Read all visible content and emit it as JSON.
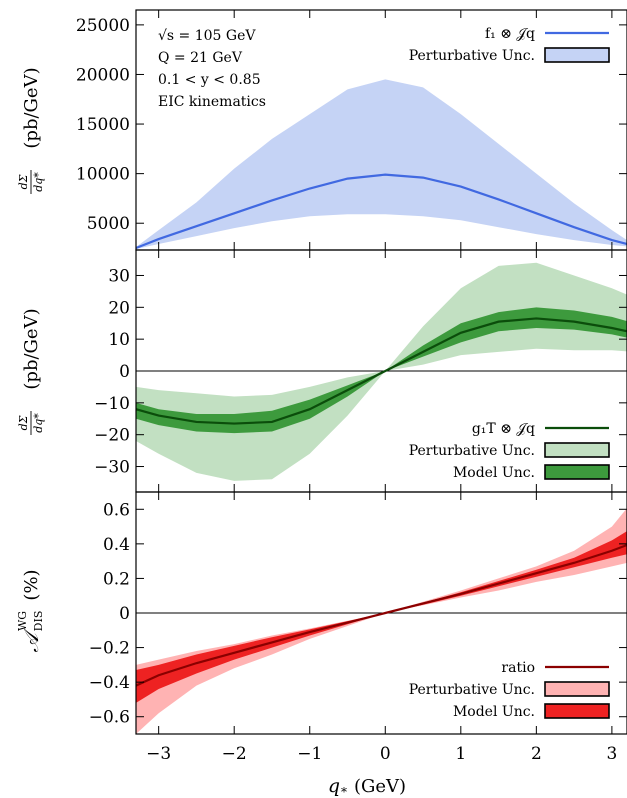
{
  "chart_data": [
    {
      "type": "area",
      "panel": "top",
      "ylabel_frac_num": "dΣ",
      "ylabel_frac_den": "dq*",
      "ylabel_unit": "(pb/GeV)",
      "ylim": [
        2300,
        26500
      ],
      "yticks": [
        5000,
        10000,
        15000,
        20000,
        25000
      ],
      "annotations": [
        "√s = 105 GeV",
        "Q = 21 GeV",
        "0.1 < y < 0.85",
        "EIC kinematics"
      ],
      "x": [
        -3.3,
        -3.0,
        -2.5,
        -2.0,
        -1.5,
        -1.0,
        -0.5,
        0.0,
        0.5,
        1.0,
        1.5,
        2.0,
        2.5,
        3.0,
        3.3
      ],
      "series": [
        {
          "name": "f₁ ⊗ 𝒥q",
          "role": "central",
          "color": "#4169e1",
          "values": [
            2500,
            3400,
            4700,
            6000,
            7300,
            8500,
            9500,
            9900,
            9600,
            8700,
            7400,
            6000,
            4600,
            3300,
            2700
          ]
        },
        {
          "name": "Perturbative Unc.",
          "role": "band",
          "color": "#c5d3f5",
          "edge": "#000000",
          "upper": [
            2600,
            4300,
            7100,
            10500,
            13500,
            16000,
            18500,
            19500,
            18700,
            16000,
            13000,
            10000,
            7000,
            4300,
            2800
          ],
          "lower": [
            2400,
            2900,
            3700,
            4500,
            5200,
            5700,
            5900,
            5900,
            5700,
            5300,
            4600,
            3900,
            3300,
            2800,
            2600
          ]
        }
      ]
    },
    {
      "type": "area",
      "panel": "middle",
      "ylabel_frac_num": "dΣ",
      "ylabel_frac_den": "dq*",
      "ylabel_unit": "(pb/GeV)",
      "ylim": [
        -38,
        38
      ],
      "yticks": [
        -30,
        -20,
        -10,
        0,
        10,
        20,
        30
      ],
      "x": [
        -3.3,
        -3.0,
        -2.5,
        -2.0,
        -1.5,
        -1.0,
        -0.5,
        0.0,
        0.5,
        1.0,
        1.5,
        2.0,
        2.5,
        3.0,
        3.3
      ],
      "series": [
        {
          "name": "g₁T ⊗ 𝒥q",
          "role": "central",
          "color": "#0b4d0b",
          "values": [
            -12,
            -14,
            -16,
            -16.5,
            -16,
            -12,
            -6,
            0,
            6,
            12,
            15.5,
            16.5,
            15.5,
            13.5,
            12
          ]
        },
        {
          "name": "Perturbative Unc.",
          "role": "outer_band",
          "color": "#c2e0c2",
          "edge": "#000000",
          "upper": [
            -5,
            -6,
            -7,
            -8,
            -7.5,
            -5,
            -2,
            0,
            14,
            26,
            33,
            34,
            30,
            26,
            23
          ],
          "lower": [
            -22,
            -26,
            -32,
            -34.5,
            -34,
            -26,
            -14,
            0,
            2,
            5,
            6,
            7,
            6.5,
            6.5,
            6
          ]
        },
        {
          "name": "Model Unc.",
          "role": "inner_band",
          "color": "#3d9a3d",
          "edge": "#000000",
          "upper": [
            -10,
            -12,
            -13.5,
            -13.5,
            -12.5,
            -9,
            -4.5,
            0,
            8,
            15,
            18.5,
            20,
            19,
            17,
            15
          ],
          "lower": [
            -15,
            -17,
            -19,
            -19.5,
            -19,
            -15,
            -8,
            0,
            4.5,
            9,
            12.5,
            13.5,
            13,
            11.5,
            10
          ]
        }
      ]
    },
    {
      "type": "area",
      "panel": "bottom",
      "ylabel_main": "𝒜",
      "ylabel_sup": "WG",
      "ylabel_sub": "DIS",
      "ylabel_unit": "(%)",
      "ylim": [
        -0.7,
        0.7
      ],
      "yticks": [
        -0.6,
        -0.4,
        -0.2,
        0,
        0.2,
        0.4,
        0.6
      ],
      "ytick_labels": [
        "−0.6",
        "−0.4",
        "−0.2",
        "0",
        "0.2",
        "0.4",
        "0.6"
      ],
      "x": [
        -3.3,
        -3.0,
        -2.5,
        -2.0,
        -1.5,
        -1.0,
        -0.5,
        0.0,
        0.5,
        1.0,
        1.5,
        2.0,
        2.5,
        3.0,
        3.3
      ],
      "series": [
        {
          "name": "ratio",
          "role": "central",
          "color": "#8b0000",
          "values": [
            -0.42,
            -0.36,
            -0.29,
            -0.23,
            -0.17,
            -0.11,
            -0.055,
            0,
            0.055,
            0.11,
            0.17,
            0.23,
            0.29,
            0.36,
            0.41
          ]
        },
        {
          "name": "Perturbative Unc.",
          "role": "outer_band",
          "color": "#ffb3b3",
          "edge": "#000000",
          "upper": [
            -0.3,
            -0.27,
            -0.22,
            -0.18,
            -0.13,
            -0.09,
            -0.045,
            0,
            0.065,
            0.13,
            0.2,
            0.27,
            0.36,
            0.5,
            0.66
          ],
          "lower": [
            -0.7,
            -0.58,
            -0.42,
            -0.32,
            -0.24,
            -0.15,
            -0.075,
            0,
            0.045,
            0.09,
            0.13,
            0.18,
            0.22,
            0.27,
            0.3
          ]
        },
        {
          "name": "Model Unc.",
          "role": "inner_band",
          "color": "#ee2222",
          "edge": "#000000",
          "upper": [
            -0.33,
            -0.3,
            -0.24,
            -0.19,
            -0.14,
            -0.095,
            -0.047,
            0,
            0.06,
            0.12,
            0.185,
            0.25,
            0.32,
            0.42,
            0.5
          ],
          "lower": [
            -0.52,
            -0.44,
            -0.35,
            -0.27,
            -0.2,
            -0.13,
            -0.065,
            0,
            0.048,
            0.1,
            0.155,
            0.21,
            0.265,
            0.32,
            0.35
          ]
        }
      ]
    }
  ],
  "x_axis": {
    "label_main": "q",
    "label_sub": "*",
    "label_unit": "(GeV)",
    "xlim": [
      -3.3,
      3.2
    ],
    "ticks": [
      -3,
      -2,
      -1,
      0,
      1,
      2,
      3
    ],
    "tick_labels": [
      "−3",
      "−2",
      "−1",
      "0",
      "1",
      "2",
      "3"
    ]
  }
}
